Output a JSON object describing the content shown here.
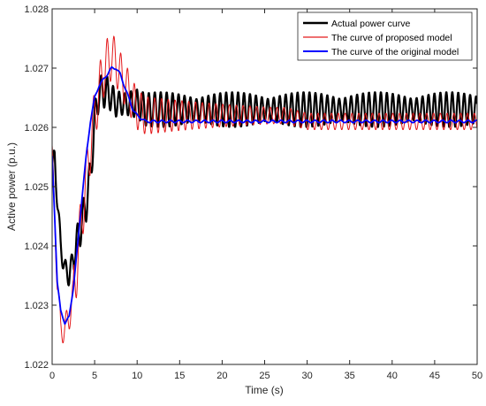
{
  "chart_data": {
    "type": "line",
    "xlabel": "Time (s)",
    "ylabel": "Active power (p.u.)",
    "xlim": [
      0,
      50
    ],
    "ylim": [
      1.022,
      1.028
    ],
    "xticks": [
      0,
      5,
      10,
      15,
      20,
      25,
      30,
      35,
      40,
      45,
      50
    ],
    "yticks": [
      1.022,
      1.023,
      1.024,
      1.025,
      1.026,
      1.027,
      1.028
    ],
    "ytick_labels": [
      "1.022",
      "1.023",
      "1.024",
      "1.025",
      "1.026",
      "1.027",
      "1.028"
    ],
    "grid": false,
    "legend_position": "top-right",
    "series": [
      {
        "name": "Actual power curve",
        "color": "#000000",
        "x": [
          0,
          0.3,
          0.6,
          1.0,
          1.5,
          2.0,
          2.5,
          3.0,
          3.5,
          4.0,
          4.5,
          5.0,
          5.5,
          6.0,
          6.5,
          7.0,
          7.5,
          8.0,
          9.0,
          10.0,
          11.0,
          12.0,
          13.0,
          14.0,
          15.0,
          17.5,
          20,
          22.5,
          25,
          27.5,
          30,
          32.5,
          35,
          37.5,
          40,
          42.5,
          45,
          47.5,
          50
        ],
        "values": [
          1.0253,
          1.0255,
          1.0248,
          1.024,
          1.0236,
          1.0235,
          1.0238,
          1.0241,
          1.0244,
          1.0247,
          1.0252,
          1.0261,
          1.0266,
          1.0266,
          1.0266,
          1.0265,
          1.0264,
          1.0264,
          1.0264,
          1.0264,
          1.0263,
          1.0263,
          1.0263,
          1.0263,
          1.0263,
          1.0263,
          1.0263,
          1.0263,
          1.0263,
          1.0263,
          1.0263,
          1.0263,
          1.0263,
          1.0263,
          1.0263,
          1.0263,
          1.0263,
          1.0263,
          1.0263
        ],
        "oscillation_amplitude": 0.0003
      },
      {
        "name": "The curve of proposed model",
        "color": "#e41a1c",
        "x": [
          0,
          0.3,
          0.6,
          1.0,
          1.5,
          2.0,
          2.5,
          3.0,
          3.5,
          4.0,
          4.5,
          5.0,
          5.5,
          6.0,
          6.5,
          7.0,
          7.5,
          8.0,
          9.0,
          10.0,
          11.0,
          12.0,
          13.0,
          14.0,
          15.0,
          17.5,
          20,
          22.5,
          25,
          27.5,
          30,
          32.5,
          35,
          37.5,
          40,
          42.5,
          45,
          47.5,
          50
        ],
        "values": [
          1.0255,
          1.0245,
          1.0234,
          1.0226,
          1.0226,
          1.0228,
          1.0232,
          1.0238,
          1.0245,
          1.0251,
          1.0257,
          1.0262,
          1.0266,
          1.0269,
          1.0271,
          1.0272,
          1.0271,
          1.0269,
          1.0266,
          1.0263,
          1.0262,
          1.0262,
          1.0262,
          1.0262,
          1.0262,
          1.0262,
          1.0262,
          1.0262,
          1.0262,
          1.0262,
          1.0261,
          1.0261,
          1.0261,
          1.0261,
          1.0261,
          1.0261,
          1.0261,
          1.0261,
          1.0261
        ],
        "oscillation_amplitude": 0.0004
      },
      {
        "name": "The curve of the original model",
        "color": "#0000ff",
        "x": [
          0,
          0.3,
          0.6,
          1.0,
          1.5,
          2.0,
          2.5,
          3.0,
          3.5,
          4.0,
          4.5,
          5.0,
          5.5,
          6.0,
          6.5,
          7.0,
          7.5,
          8.0,
          8.5,
          9.0,
          9.5,
          10.0,
          11.0,
          12.0,
          13.0,
          14.0,
          15.0,
          17.5,
          20,
          22.5,
          25,
          27.5,
          30,
          32.5,
          35,
          37.5,
          40,
          42.5,
          45,
          47.5,
          50
        ],
        "values": [
          1.0255,
          1.0245,
          1.0234,
          1.0229,
          1.0227,
          1.0228,
          1.0233,
          1.024,
          1.0248,
          1.0255,
          1.0261,
          1.0265,
          1.0267,
          1.0268,
          1.0269,
          1.027,
          1.027,
          1.0269,
          1.0267,
          1.0265,
          1.0263,
          1.0262,
          1.0261,
          1.0261,
          1.0261,
          1.0261,
          1.0261,
          1.0261,
          1.0261,
          1.0261,
          1.0261,
          1.0261,
          1.0261,
          1.0261,
          1.0261,
          1.0261,
          1.0261,
          1.0261,
          1.0261,
          1.0261,
          1.0261
        ],
        "oscillation_amplitude": 2e-05
      }
    ]
  }
}
